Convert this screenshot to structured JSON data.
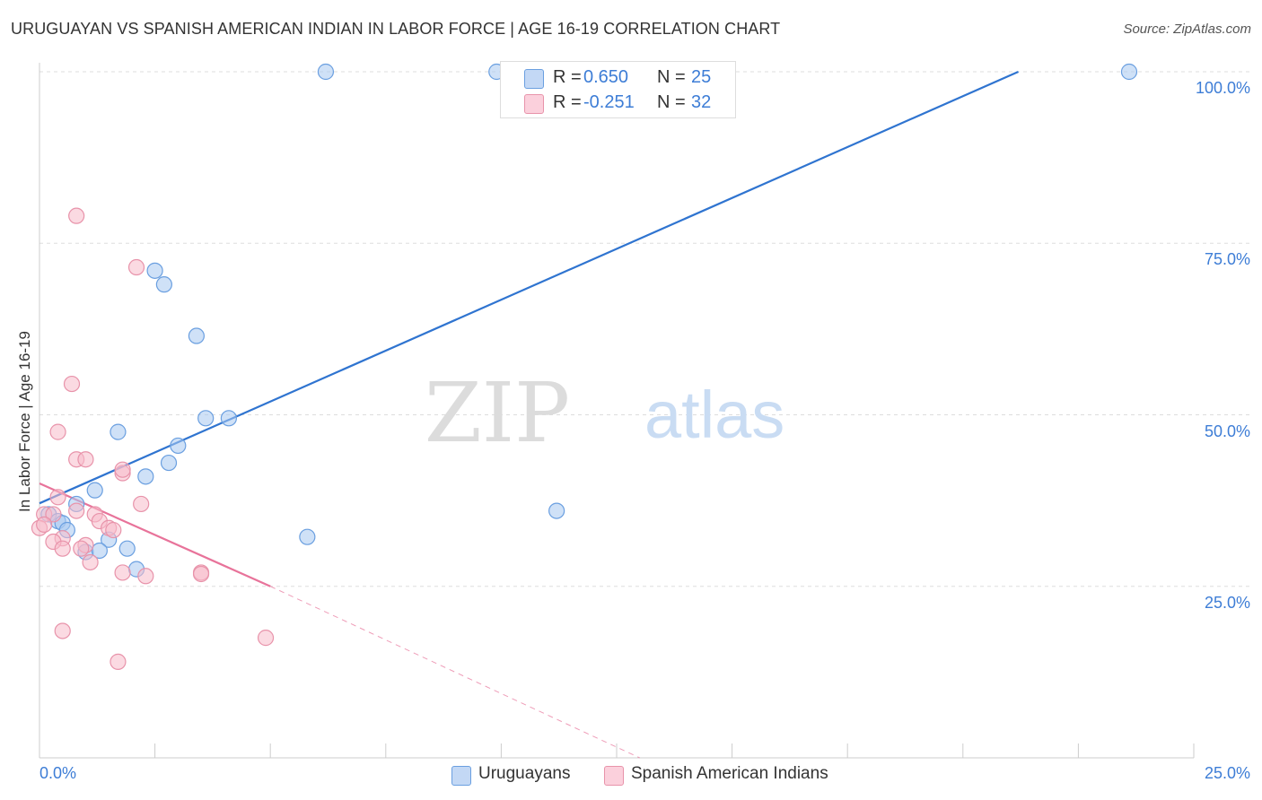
{
  "chart_data": {
    "type": "scatter",
    "title": "URUGUAYAN VS SPANISH AMERICAN INDIAN IN LABOR FORCE | AGE 16-19 CORRELATION CHART",
    "source": "Source: ZipAtlas.com",
    "ylabel": "In Labor Force | Age 16-19",
    "xlabel": "",
    "xlim": [
      0,
      25
    ],
    "ylim": [
      0,
      102
    ],
    "x_tick_labels": [
      "0.0%",
      "25.0%"
    ],
    "y_ticks": [
      {
        "value": 100,
        "label": "100.0%"
      },
      {
        "value": 75,
        "label": "75.0%"
      },
      {
        "value": 50,
        "label": "50.0%"
      },
      {
        "value": 25,
        "label": "25.0%"
      }
    ],
    "watermark": {
      "zip": "ZIP",
      "atlas": "atlas"
    },
    "series": [
      {
        "name": "Uruguayans",
        "color": "#a8c8f0",
        "edge": "#6a9fe0",
        "R": "0.650",
        "N": "25",
        "trend": {
          "x": [
            0.0,
            21.2
          ],
          "y": [
            37.1,
            100.0
          ],
          "color": "#2f74d0"
        },
        "points": [
          [
            6.2,
            100.0
          ],
          [
            9.9,
            100.0
          ],
          [
            23.6,
            100.0
          ],
          [
            2.5,
            71.0
          ],
          [
            2.7,
            69.0
          ],
          [
            3.4,
            61.5
          ],
          [
            1.7,
            47.5
          ],
          [
            3.6,
            49.5
          ],
          [
            4.1,
            49.5
          ],
          [
            3.0,
            45.5
          ],
          [
            2.8,
            43.0
          ],
          [
            2.3,
            41.0
          ],
          [
            1.2,
            39.0
          ],
          [
            0.8,
            37.0
          ],
          [
            11.2,
            36.0
          ],
          [
            0.2,
            35.5
          ],
          [
            0.4,
            34.5
          ],
          [
            0.5,
            34.2
          ],
          [
            0.6,
            33.2
          ],
          [
            5.8,
            32.2
          ],
          [
            1.5,
            31.8
          ],
          [
            1.9,
            30.5
          ],
          [
            1.0,
            30.0
          ],
          [
            1.3,
            30.2
          ],
          [
            2.1,
            27.5
          ]
        ]
      },
      {
        "name": "Spanish American Indians",
        "color": "#f7bccb",
        "edge": "#e893aa",
        "R": "-0.251",
        "N": "32",
        "trend": {
          "x": [
            0.0,
            5.0
          ],
          "y": [
            40.0,
            25.0
          ],
          "color": "#e8739a"
        },
        "trend_ext": {
          "x": [
            5.0,
            13.0
          ],
          "y": [
            25.0,
            0.0
          ]
        },
        "points": [
          [
            0.8,
            79.0
          ],
          [
            2.1,
            71.5
          ],
          [
            0.7,
            54.5
          ],
          [
            0.4,
            47.5
          ],
          [
            0.8,
            43.5
          ],
          [
            1.0,
            43.5
          ],
          [
            1.8,
            41.5
          ],
          [
            1.8,
            42.0
          ],
          [
            0.4,
            38.0
          ],
          [
            2.2,
            37.0
          ],
          [
            0.1,
            35.5
          ],
          [
            0.3,
            35.5
          ],
          [
            0.8,
            36.0
          ],
          [
            1.2,
            35.5
          ],
          [
            1.3,
            34.5
          ],
          [
            0.0,
            33.5
          ],
          [
            1.5,
            33.5
          ],
          [
            1.6,
            33.2
          ],
          [
            0.5,
            32.0
          ],
          [
            0.3,
            31.5
          ],
          [
            1.0,
            31.0
          ],
          [
            0.5,
            30.5
          ],
          [
            0.9,
            30.5
          ],
          [
            1.1,
            28.5
          ],
          [
            1.8,
            27.0
          ],
          [
            3.5,
            27.0
          ],
          [
            3.5,
            26.8
          ],
          [
            2.3,
            26.5
          ],
          [
            0.5,
            18.5
          ],
          [
            4.9,
            17.5
          ],
          [
            1.7,
            14.0
          ],
          [
            0.1,
            34.0
          ]
        ]
      }
    ]
  }
}
